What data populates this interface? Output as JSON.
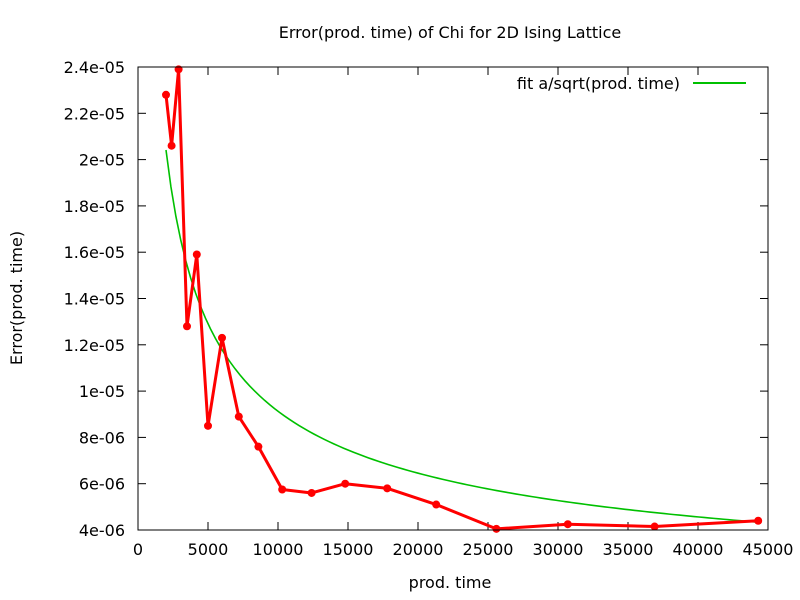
{
  "chart_data": {
    "type": "line",
    "title": "Error(prod. time) of Chi for 2D Ising Lattice",
    "xlabel": "prod. time",
    "ylabel": "Error(prod. time)",
    "xlim": [
      0,
      45000
    ],
    "ylim": [
      4e-06,
      2.4e-05
    ],
    "x_ticks": [
      0,
      5000,
      10000,
      15000,
      20000,
      25000,
      30000,
      35000,
      40000,
      45000
    ],
    "x_tick_labels": [
      "0",
      "5000",
      "10000",
      "15000",
      "20000",
      "25000",
      "30000",
      "35000",
      "40000",
      "45000"
    ],
    "y_ticks": [
      4e-06,
      6e-06,
      8e-06,
      1e-05,
      1.2e-05,
      1.4e-05,
      1.6e-05,
      1.8e-05,
      2e-05,
      2.2e-05,
      2.4e-05
    ],
    "y_tick_labels": [
      "4e-06",
      "6e-06",
      "8e-06",
      "1e-05",
      "1.2e-05",
      "1.4e-05",
      "1.6e-05",
      "1.8e-05",
      "2e-05",
      "2.2e-05",
      "2.4e-05"
    ],
    "grid": false,
    "legend_position": "top-right",
    "series": [
      {
        "color": "#ff0000",
        "style": "line-with-points",
        "x": [
          2000,
          2400,
          2900,
          3500,
          4200,
          5000,
          6000,
          7200,
          8600,
          10300,
          12400,
          14800,
          17800,
          21300,
          25600,
          30700,
          36900,
          44300
        ],
        "y": [
          2.28e-05,
          2.06e-05,
          2.39e-05,
          1.28e-05,
          1.59e-05,
          8.5e-06,
          1.23e-05,
          8.9e-06,
          7.6e-06,
          5.75e-06,
          5.6e-06,
          6e-06,
          5.8e-06,
          5.1e-06,
          4.05e-06,
          4.25e-06,
          4.15e-06,
          4.4e-06
        ]
      },
      {
        "name": "fit a/sqrt(prod. time)",
        "color": "#00c000",
        "style": "line",
        "formula": "a/sqrt(prod. time)",
        "a": 0.000913,
        "x_range": [
          2000,
          44300
        ]
      }
    ]
  }
}
